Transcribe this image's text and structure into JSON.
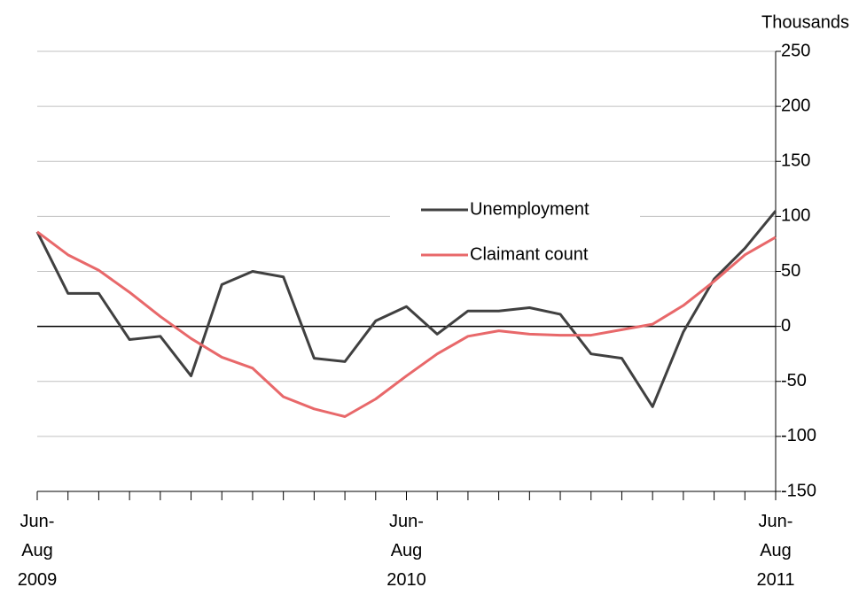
{
  "chart_data": {
    "type": "line",
    "y_label": "Thousands",
    "categories": [
      "Jun-\nAug\n2009",
      null,
      null,
      null,
      null,
      null,
      null,
      null,
      null,
      null,
      null,
      null,
      "Jun-\nAug\n2010",
      null,
      null,
      null,
      null,
      null,
      null,
      null,
      null,
      null,
      null,
      null,
      "Jun-\nAug\n2011"
    ],
    "series": [
      {
        "name": "Unemployment",
        "color": "#404040",
        "values": [
          86,
          30,
          30,
          -12,
          -9,
          -45,
          38,
          50,
          45,
          -29,
          -32,
          5,
          18,
          -7,
          14,
          14,
          17,
          11,
          -25,
          -29,
          -73,
          -5,
          43,
          71,
          105
        ]
      },
      {
        "name": "Claimant count",
        "color": "#e8686a",
        "values": [
          86,
          65,
          51,
          31,
          9,
          -11,
          -28,
          -38,
          -64,
          -75,
          -82,
          -66,
          -45,
          -25,
          -9,
          -4,
          -7,
          -8,
          -8,
          -3,
          2,
          19,
          41,
          65,
          81
        ]
      }
    ],
    "ylim": [
      -150,
      250
    ],
    "yticks": [
      -150,
      -100,
      -50,
      0,
      50,
      100,
      150,
      200,
      250
    ],
    "grid": true,
    "legend": "center"
  }
}
